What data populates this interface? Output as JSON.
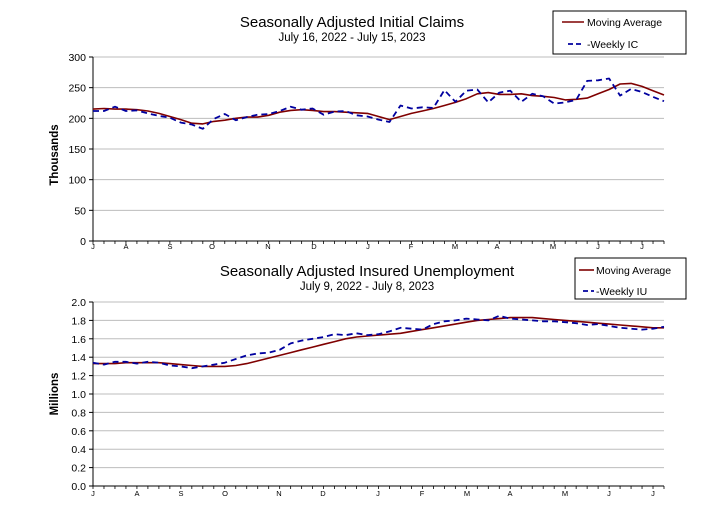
{
  "chart_data": [
    {
      "type": "line",
      "title": "Seasonally Adjusted Initial Claims",
      "subtitle": "July 16, 2022 - July 15, 2023",
      "ylabel": "Thousands",
      "ylim": [
        0,
        300
      ],
      "yticks": [
        "0",
        "50",
        "100",
        "150",
        "200",
        "250",
        "300"
      ],
      "month_labels": [
        "J",
        "A",
        "S",
        "O",
        "N",
        "D",
        "J",
        "F",
        "M",
        "A",
        "M",
        "J",
        "J"
      ],
      "grid": true,
      "legend_position": "top-right",
      "series": [
        {
          "name": "Moving Average",
          "color": "#7f0000",
          "style": "solid",
          "values": [
            215,
            216,
            215,
            215,
            214,
            212,
            208,
            203,
            198,
            192,
            191,
            195,
            197,
            200,
            202,
            202,
            205,
            210,
            213,
            214,
            213,
            211,
            211,
            210,
            209,
            208,
            203,
            198,
            203,
            208,
            212,
            216,
            221,
            226,
            232,
            240,
            242,
            239,
            239,
            240,
            237,
            236,
            234,
            230,
            231,
            233,
            240,
            247,
            256,
            257,
            252,
            245,
            238
          ]
        },
        {
          "name": "Weekly IC",
          "color": "#00009f",
          "style": "dashed",
          "values": [
            212,
            212,
            219,
            212,
            213,
            208,
            204,
            201,
            193,
            190,
            183,
            199,
            207,
            197,
            202,
            206,
            207,
            212,
            219,
            214,
            216,
            206,
            211,
            212,
            205,
            203,
            198,
            194,
            221,
            216,
            218,
            217,
            246,
            227,
            245,
            247,
            226,
            242,
            245,
            227,
            240,
            236,
            224,
            226,
            230,
            261,
            262,
            265,
            237,
            248,
            243,
            235,
            228
          ]
        }
      ]
    },
    {
      "type": "line",
      "title": "Seasonally Adjusted Insured Unemployment",
      "subtitle": "July 9, 2022 - July 8, 2023",
      "ylabel": "Millions",
      "ylim": [
        0,
        2.0
      ],
      "yticks": [
        "0.0",
        "0.2",
        "0.4",
        "0.6",
        "0.8",
        "1.0",
        "1.2",
        "1.4",
        "1.6",
        "1.8",
        "2.0"
      ],
      "month_labels": [
        "J",
        "A",
        "S",
        "O",
        "N",
        "D",
        "J",
        "F",
        "M",
        "A",
        "M",
        "J",
        "J"
      ],
      "grid": true,
      "legend_position": "top-right",
      "series": [
        {
          "name": "Moving Average",
          "color": "#7f0000",
          "style": "solid",
          "values": [
            1.33,
            1.33,
            1.33,
            1.34,
            1.34,
            1.34,
            1.34,
            1.33,
            1.32,
            1.31,
            1.3,
            1.3,
            1.3,
            1.31,
            1.33,
            1.36,
            1.39,
            1.42,
            1.45,
            1.48,
            1.51,
            1.54,
            1.57,
            1.6,
            1.62,
            1.63,
            1.64,
            1.65,
            1.66,
            1.68,
            1.7,
            1.72,
            1.74,
            1.76,
            1.78,
            1.8,
            1.81,
            1.82,
            1.83,
            1.83,
            1.83,
            1.82,
            1.81,
            1.8,
            1.79,
            1.78,
            1.77,
            1.76,
            1.75,
            1.74,
            1.73,
            1.72,
            1.72
          ]
        },
        {
          "name": "Weekly IU",
          "color": "#00009f",
          "style": "dashed",
          "values": [
            1.34,
            1.32,
            1.35,
            1.35,
            1.33,
            1.35,
            1.34,
            1.31,
            1.3,
            1.28,
            1.3,
            1.32,
            1.34,
            1.38,
            1.42,
            1.44,
            1.45,
            1.48,
            1.55,
            1.58,
            1.6,
            1.62,
            1.65,
            1.64,
            1.66,
            1.64,
            1.65,
            1.68,
            1.72,
            1.71,
            1.7,
            1.76,
            1.79,
            1.8,
            1.82,
            1.81,
            1.8,
            1.85,
            1.82,
            1.81,
            1.8,
            1.79,
            1.79,
            1.78,
            1.77,
            1.75,
            1.76,
            1.74,
            1.72,
            1.71,
            1.7,
            1.71,
            1.73
          ]
        }
      ]
    }
  ]
}
